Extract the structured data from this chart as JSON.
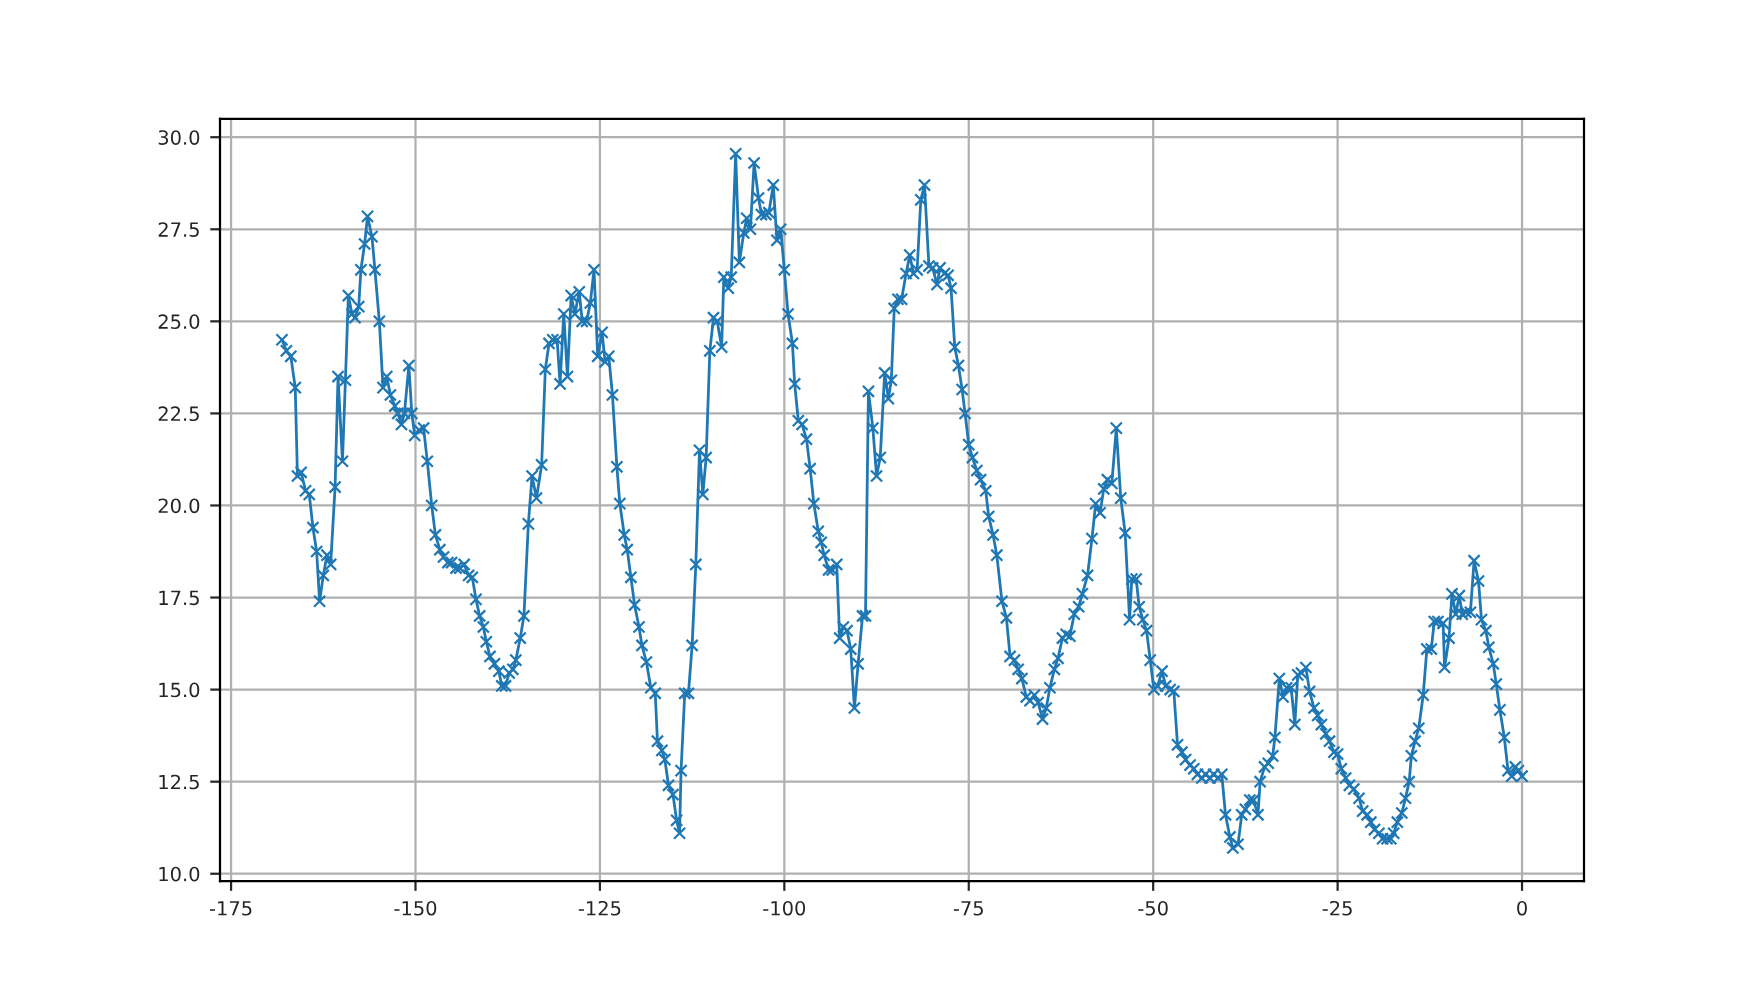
{
  "chart_data": {
    "type": "line",
    "marker": "cross",
    "line_style": "solid",
    "grid": true,
    "xlim": [
      -176.5,
      8.4
    ],
    "ylim": [
      9.8,
      30.5
    ],
    "xticks": [
      -175,
      -150,
      -125,
      -100,
      -75,
      -50,
      -25,
      0
    ],
    "yticks": [
      {
        "value": 10,
        "label": "10.0"
      },
      {
        "value": 12.5,
        "label": "12.5"
      },
      {
        "value": 15,
        "label": "15.0"
      },
      {
        "value": 17.5,
        "label": "17.5"
      },
      {
        "value": 20,
        "label": "20.0"
      },
      {
        "value": 22.5,
        "label": "22.5"
      },
      {
        "value": 25,
        "label": "25.0"
      },
      {
        "value": 27.5,
        "label": "27.5"
      },
      {
        "value": 30,
        "label": "30.0"
      }
    ],
    "series": [
      {
        "color": "#1f77b4",
        "x": [
          -168.1,
          -167.5,
          -166.9,
          -166.3,
          -166.0,
          -165.5,
          -164.9,
          -164.4,
          -163.9,
          -163.4,
          -163.0,
          -162.5,
          -162.0,
          -161.5,
          -160.9,
          -160.5,
          -159.9,
          -159.5,
          -159.1,
          -158.6,
          -158.2,
          -157.7,
          -157.4,
          -156.9,
          -156.5,
          -155.9,
          -155.5,
          -154.9,
          -154.4,
          -153.9,
          -153.4,
          -152.8,
          -152.4,
          -151.9,
          -151.5,
          -150.9,
          -150.5,
          -150.1,
          -149.5,
          -148.9,
          -148.4,
          -147.8,
          -147.3,
          -146.7,
          -146.2,
          -145.6,
          -145.1,
          -144.5,
          -144.0,
          -143.4,
          -142.8,
          -142.3,
          -141.8,
          -141.3,
          -140.8,
          -140.4,
          -139.9,
          -139.3,
          -138.7,
          -138.3,
          -137.8,
          -137.3,
          -136.8,
          -136.4,
          -135.8,
          -135.3,
          -134.7,
          -134.2,
          -133.6,
          -132.9,
          -132.4,
          -131.9,
          -131.4,
          -130.8,
          -130.4,
          -129.9,
          -129.4,
          -128.9,
          -128.4,
          -127.8,
          -127.4,
          -126.8,
          -126.3,
          -125.8,
          -125.3,
          -124.7,
          -124.3,
          -123.8,
          -123.3,
          -122.7,
          -122.3,
          -121.7,
          -121.3,
          -120.8,
          -120.3,
          -119.7,
          -119.3,
          -118.7,
          -118.1,
          -117.5,
          -117.2,
          -116.6,
          -116.2,
          -115.7,
          -115.1,
          -114.6,
          -114.2,
          -114.0,
          -113.5,
          -113.0,
          -112.5,
          -112.0,
          -111.5,
          -111.05,
          -110.6,
          -110.1,
          -109.6,
          -109.1,
          -108.5,
          -108.2,
          -107.6,
          -107.2,
          -106.6,
          -106.1,
          -105.5,
          -105.1,
          -104.6,
          -104.1,
          -103.5,
          -103.1,
          -102.5,
          -102.1,
          -101.5,
          -101.0,
          -100.5,
          -100.0,
          -99.5,
          -98.9,
          -98.6,
          -98.1,
          -97.6,
          -97.0,
          -96.5,
          -96.0,
          -95.4,
          -95.0,
          -94.6,
          -94.0,
          -93.5,
          -92.9,
          -92.5,
          -92.0,
          -91.5,
          -91.0,
          -90.5,
          -90.0,
          -89.4,
          -89.0,
          -88.6,
          -88.0,
          -87.5,
          -87.0,
          -86.4,
          -85.9,
          -85.5,
          -85.1,
          -84.6,
          -84.1,
          -83.5,
          -83.0,
          -82.5,
          -82.0,
          -81.5,
          -81.0,
          -80.4,
          -79.9,
          -79.3,
          -78.9,
          -78.3,
          -77.8,
          -77.4,
          -76.9,
          -76.4,
          -75.9,
          -75.5,
          -75.0,
          -74.5,
          -73.9,
          -73.4,
          -72.7,
          -72.3,
          -71.7,
          -71.2,
          -70.5,
          -69.9,
          -69.4,
          -68.8,
          -68.3,
          -67.8,
          -67.2,
          -66.7,
          -66.1,
          -65.6,
          -65.0,
          -64.5,
          -64.0,
          -63.4,
          -62.9,
          -62.3,
          -61.8,
          -61.3,
          -60.7,
          -60.1,
          -59.6,
          -58.9,
          -58.3,
          -57.8,
          -57.2,
          -56.7,
          -56.2,
          -55.6,
          -55.0,
          -54.4,
          -53.8,
          -53.2,
          -52.9,
          -52.3,
          -51.9,
          -51.4,
          -50.9,
          -50.4,
          -49.9,
          -49.4,
          -48.8,
          -48.3,
          -47.7,
          -47.2,
          -46.7,
          -46.1,
          -45.6,
          -45.0,
          -44.5,
          -44.0,
          -43.4,
          -42.9,
          -42.3,
          -41.8,
          -41.2,
          -40.7,
          -40.2,
          -39.6,
          -39.2,
          -38.5,
          -38.0,
          -37.5,
          -36.9,
          -36.4,
          -35.8,
          -35.5,
          -34.9,
          -34.4,
          -33.8,
          -33.5,
          -32.9,
          -32.4,
          -31.9,
          -31.3,
          -30.8,
          -30.4,
          -29.9,
          -29.3,
          -28.8,
          -28.2,
          -27.7,
          -27.2,
          -26.6,
          -26.1,
          -25.5,
          -25.0,
          -24.5,
          -23.9,
          -23.4,
          -22.8,
          -22.1,
          -21.6,
          -21.0,
          -20.5,
          -20.0,
          -19.4,
          -18.9,
          -18.3,
          -17.8,
          -17.4,
          -16.9,
          -16.3,
          -15.8,
          -15.3,
          -15.0,
          -14.5,
          -14.0,
          -13.4,
          -12.9,
          -12.3,
          -11.9,
          -11.4,
          -10.7,
          -10.5,
          -9.9,
          -9.5,
          -9.0,
          -8.5,
          -8.1,
          -7.6,
          -7.0,
          -6.5,
          -5.9,
          -5.5,
          -4.9,
          -4.5,
          -3.9,
          -3.5,
          -3.0,
          -2.4,
          -1.9,
          -1.4,
          -0.9,
          -0.5,
          0.0
        ],
        "values": [
          24.5,
          24.2,
          24.05,
          23.2,
          20.8,
          20.9,
          20.4,
          20.3,
          19.4,
          18.75,
          17.4,
          18.1,
          18.65,
          18.4,
          20.5,
          23.5,
          21.2,
          23.4,
          25.7,
          25.2,
          25.1,
          25.4,
          26.4,
          27.1,
          27.85,
          27.3,
          26.4,
          25.0,
          23.2,
          23.5,
          23.0,
          22.7,
          22.5,
          22.2,
          22.5,
          23.8,
          22.5,
          21.9,
          22.05,
          22.1,
          21.2,
          20.0,
          19.2,
          18.8,
          18.6,
          18.45,
          18.45,
          18.3,
          18.3,
          18.4,
          18.1,
          18.05,
          17.45,
          17.0,
          16.7,
          16.3,
          15.9,
          15.7,
          15.5,
          15.1,
          15.1,
          15.45,
          15.55,
          15.8,
          16.4,
          17.0,
          19.5,
          20.8,
          20.2,
          21.1,
          23.7,
          24.4,
          24.5,
          24.5,
          23.3,
          25.2,
          23.5,
          25.7,
          25.2,
          25.8,
          25.0,
          25.0,
          25.5,
          26.4,
          24.05,
          24.7,
          23.9,
          24.05,
          23.0,
          21.05,
          20.05,
          19.2,
          18.8,
          18.05,
          17.3,
          16.7,
          16.2,
          15.75,
          15.05,
          14.9,
          13.6,
          13.35,
          13.1,
          12.4,
          12.15,
          11.45,
          11.1,
          12.8,
          14.9,
          14.9,
          16.2,
          18.4,
          21.5,
          20.3,
          21.3,
          24.2,
          25.1,
          25.0,
          24.3,
          26.2,
          25.9,
          26.2,
          29.55,
          26.6,
          27.4,
          27.8,
          27.5,
          29.3,
          28.35,
          27.9,
          27.9,
          27.95,
          28.7,
          27.2,
          27.5,
          26.4,
          25.2,
          24.4,
          23.3,
          22.3,
          22.2,
          21.8,
          21.0,
          20.05,
          19.3,
          19.0,
          18.65,
          18.25,
          18.25,
          18.4,
          16.4,
          16.7,
          16.6,
          16.1,
          14.5,
          15.7,
          17.0,
          17.0,
          23.1,
          22.1,
          20.8,
          21.3,
          23.6,
          22.9,
          23.4,
          25.35,
          25.6,
          25.6,
          26.3,
          26.8,
          26.3,
          26.4,
          28.3,
          28.7,
          26.5,
          26.45,
          26.0,
          26.45,
          26.3,
          26.25,
          25.9,
          24.3,
          23.8,
          23.15,
          22.5,
          21.65,
          21.3,
          20.95,
          20.7,
          20.4,
          19.7,
          19.2,
          18.65,
          17.4,
          16.95,
          15.9,
          15.8,
          15.55,
          15.3,
          14.8,
          14.7,
          14.85,
          14.65,
          14.2,
          14.5,
          15.05,
          15.55,
          15.85,
          16.4,
          16.5,
          16.45,
          17.05,
          17.25,
          17.6,
          18.1,
          19.1,
          20.05,
          19.8,
          20.45,
          20.7,
          20.6,
          22.1,
          20.2,
          19.25,
          16.9,
          18.0,
          18.0,
          17.25,
          16.9,
          16.6,
          15.8,
          15.0,
          15.1,
          15.5,
          15.1,
          15.0,
          14.95,
          13.5,
          13.3,
          13.1,
          12.95,
          12.85,
          12.7,
          12.6,
          12.7,
          12.6,
          12.7,
          12.6,
          12.7,
          11.6,
          11.0,
          10.7,
          10.8,
          11.6,
          11.75,
          12.0,
          12.0,
          11.6,
          12.5,
          12.9,
          13.0,
          13.2,
          13.7,
          15.3,
          14.8,
          15.05,
          15.05,
          14.05,
          15.4,
          15.45,
          15.6,
          14.95,
          14.5,
          14.3,
          14.05,
          13.8,
          13.6,
          13.3,
          13.25,
          12.85,
          12.6,
          12.4,
          12.3,
          12.05,
          11.7,
          11.6,
          11.4,
          11.2,
          11.1,
          10.95,
          10.95,
          10.95,
          11.1,
          11.4,
          11.65,
          12.05,
          12.5,
          13.2,
          13.6,
          13.95,
          14.85,
          16.1,
          16.1,
          16.85,
          16.85,
          16.8,
          15.6,
          16.4,
          17.6,
          17.05,
          17.55,
          17.05,
          17.1,
          17.1,
          18.5,
          17.95,
          16.9,
          16.6,
          16.15,
          15.7,
          15.15,
          14.45,
          13.7,
          12.8,
          12.65,
          12.9,
          12.8,
          12.65
        ]
      }
    ]
  }
}
